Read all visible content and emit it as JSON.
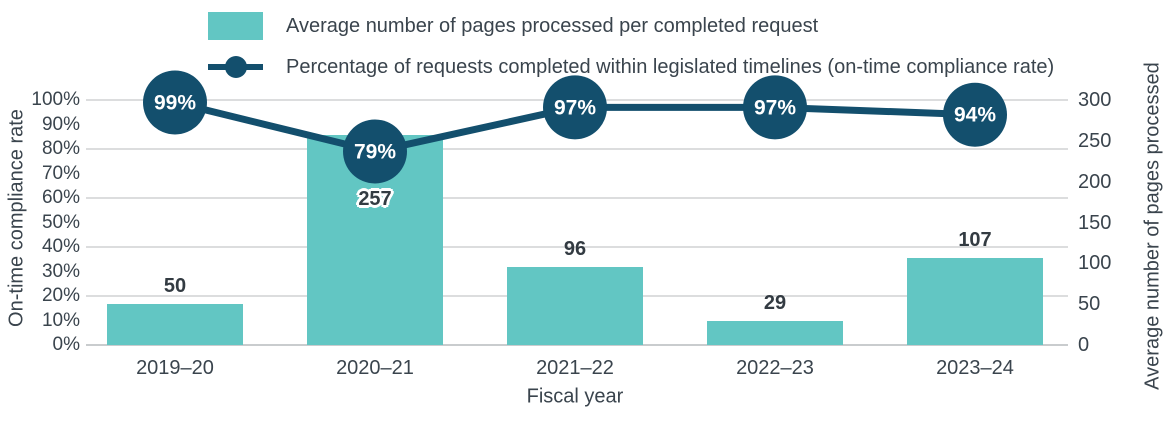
{
  "chart_data": {
    "type": "combo-bar-line",
    "categories": [
      "2019–20",
      "2020–21",
      "2021–22",
      "2022–23",
      "2023–24"
    ],
    "series": [
      {
        "name": "Average number of pages processed per completed request",
        "type": "bar",
        "axis": "right",
        "values": [
          50,
          257,
          96,
          29,
          107
        ]
      },
      {
        "name": "Percentage of requests completed within legislated timelines (on-time compliance rate)",
        "type": "line",
        "axis": "left",
        "values": [
          99,
          79,
          97,
          97,
          94
        ],
        "point_labels": [
          "99%",
          "79%",
          "97%",
          "97%",
          "94%"
        ]
      }
    ],
    "xlabel": "Fiscal year",
    "left_axis": {
      "label": "On-time compliance rate",
      "min": 0,
      "max": 100,
      "ticks": [
        "0%",
        "10%",
        "20%",
        "30%",
        "40%",
        "50%",
        "60%",
        "70%",
        "80%",
        "90%",
        "100%"
      ],
      "gridlines_at": [
        20,
        40,
        60,
        80,
        100
      ]
    },
    "right_axis": {
      "label": "Average number of pages processed",
      "min": 0,
      "max": 300,
      "ticks": [
        "0",
        "50",
        "100",
        "150",
        "200",
        "250",
        "300"
      ]
    },
    "legend_position": "top",
    "grid": true
  },
  "colors": {
    "bar": "#62C6C3",
    "line": "#134F6D",
    "text": "#3A444D",
    "text_strong": "#333B42",
    "grid": "#DCDDDE",
    "axis_line": "#C9CCCE",
    "point_label_text": "#FFFFFF",
    "bar_label_halo": "#FFFFFF"
  }
}
